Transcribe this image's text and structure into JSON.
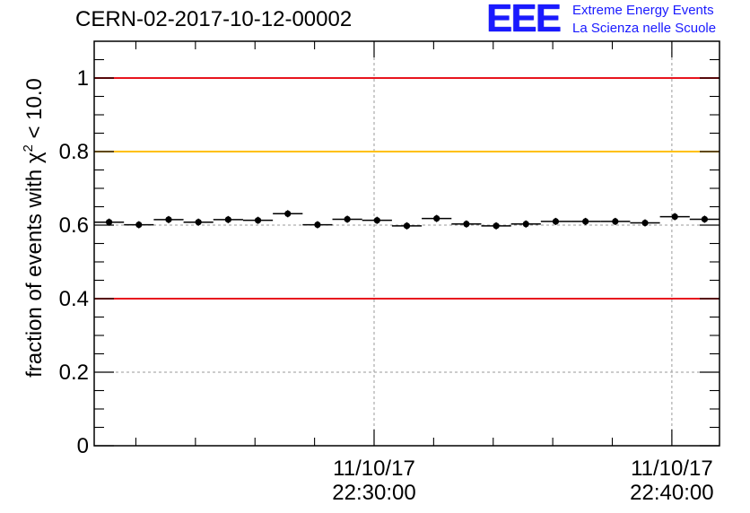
{
  "chart_data": {
    "type": "scatter",
    "title": "CERN-02-2017-10-12-00002",
    "ylabel": "fraction of events with χ² < 10.0",
    "ylabel_main": "fraction of events with χ",
    "ylabel_sup": "2",
    "ylabel_tail": " < 10.0",
    "ylim": [
      0,
      1.1
    ],
    "yticks": [
      0,
      0.2,
      0.4,
      0.6,
      0.8,
      1
    ],
    "ytick_labels": [
      "0",
      "0.2",
      "0.4",
      "0.6",
      "0.8",
      "1"
    ],
    "xlim_minutes": [
      20.6,
      41.6
    ],
    "x_tick_labels": [
      {
        "minute": 30,
        "line1": "11/10/17",
        "line2": "22:30:00"
      },
      {
        "minute": 40,
        "line1": "11/10/17",
        "line2": "22:40:00"
      }
    ],
    "x_minor_ticks_minutes": [
      22,
      24,
      26,
      28,
      32,
      34,
      36,
      38
    ],
    "reference_lines": [
      {
        "y": 1.0,
        "color": "#e8141e"
      },
      {
        "y": 0.8,
        "color": "#ffc000"
      },
      {
        "y": 0.4,
        "color": "#e8141e"
      }
    ],
    "grid": true,
    "bin_width_minutes": 1,
    "points": [
      {
        "x": 21.1,
        "y": 0.608
      },
      {
        "x": 22.1,
        "y": 0.601
      },
      {
        "x": 23.1,
        "y": 0.615
      },
      {
        "x": 24.1,
        "y": 0.608
      },
      {
        "x": 25.1,
        "y": 0.615
      },
      {
        "x": 26.1,
        "y": 0.613
      },
      {
        "x": 27.1,
        "y": 0.631
      },
      {
        "x": 28.1,
        "y": 0.601
      },
      {
        "x": 29.1,
        "y": 0.616
      },
      {
        "x": 30.1,
        "y": 0.613
      },
      {
        "x": 31.1,
        "y": 0.598
      },
      {
        "x": 32.1,
        "y": 0.618
      },
      {
        "x": 33.1,
        "y": 0.603
      },
      {
        "x": 34.1,
        "y": 0.598
      },
      {
        "x": 35.1,
        "y": 0.603
      },
      {
        "x": 36.1,
        "y": 0.61
      },
      {
        "x": 37.1,
        "y": 0.61
      },
      {
        "x": 38.1,
        "y": 0.61
      },
      {
        "x": 39.1,
        "y": 0.606
      },
      {
        "x": 40.1,
        "y": 0.623
      },
      {
        "x": 41.1,
        "y": 0.616
      }
    ]
  },
  "logo": {
    "mark": "EEE",
    "line1": "Extreme Energy Events",
    "line2": "La Scienza nelle Scuole"
  }
}
